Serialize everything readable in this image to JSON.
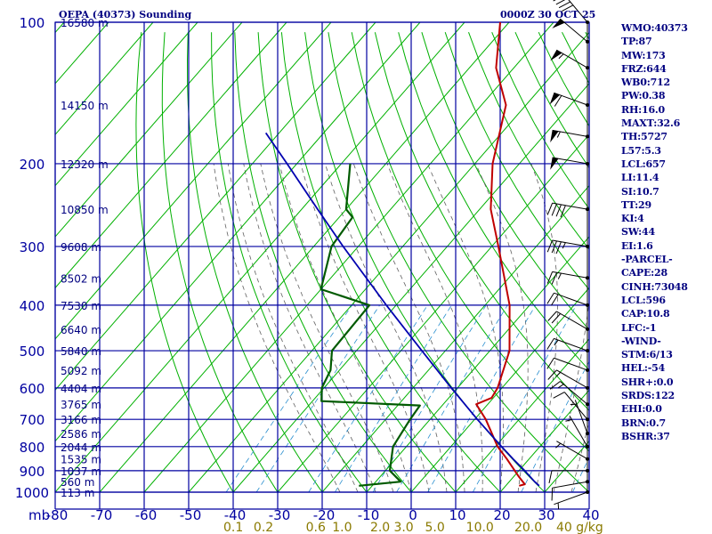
{
  "header": {
    "station": "OEPA (40373) Sounding",
    "datetime": "0000Z 30 OCT 25"
  },
  "colors": {
    "isobar": "#0000a0",
    "temperature": "#c00000",
    "dewpoint": "#005a00",
    "parcel": "#0000b0",
    "dry_adiabat": "#00b000",
    "moist_adiabat": "#606060",
    "mixing_ratio": "#2a8fcf",
    "mixing_label": "#8a7a00",
    "wind": "#000000"
  },
  "indices": [
    "WMO:40373",
    "TP:87",
    "MW:173",
    "FRZ:644",
    "WB0:712",
    "PW:0.38",
    "RH:16.0",
    "MAXT:32.6",
    "TH:5727",
    "L57:5.3",
    "LCL:657",
    "LI:11.4",
    "SI:10.7",
    "TT:29",
    "KI:4",
    "SW:44",
    "EI:1.6",
    "-PARCEL-",
    "CAPE:28",
    "CINH:73048",
    "LCL:596",
    "CAP:10.8",
    "LFC:-1",
    "-WIND-",
    "STM:6/13",
    "HEL:-54",
    "SHR+:0.0",
    "SRDS:122",
    "EHI:0.0",
    "BRN:0.7",
    "BSHR:37"
  ],
  "chart_data": {
    "type": "line",
    "title": "OEPA (40373) Sounding",
    "subtitle": "0000Z 30 OCT 25",
    "xlabel": "",
    "ylabel": "mb",
    "x_unit": "°C",
    "xlim": [
      -80,
      40
    ],
    "ylim": [
      1000,
      100
    ],
    "y_scale": "log",
    "x_ticks": [
      -80,
      -70,
      -60,
      -50,
      -40,
      -30,
      -20,
      -10,
      0,
      10,
      20,
      30,
      40
    ],
    "pressure_ticks": [
      100,
      200,
      300,
      400,
      500,
      600,
      700,
      800,
      900,
      1000
    ],
    "height_labels": [
      {
        "p": 100,
        "label": "16580 m"
      },
      {
        "p": 150,
        "label": "14150 m"
      },
      {
        "p": 200,
        "label": "12320 m"
      },
      {
        "p": 250,
        "label": "10850 m"
      },
      {
        "p": 300,
        "label": "9608 m"
      },
      {
        "p": 350,
        "label": "8502 m"
      },
      {
        "p": 400,
        "label": "7530 m"
      },
      {
        "p": 450,
        "label": "6640 m"
      },
      {
        "p": 500,
        "label": "5840 m"
      },
      {
        "p": 550,
        "label": "5092 m"
      },
      {
        "p": 600,
        "label": "4404 m"
      },
      {
        "p": 650,
        "label": "3765 m"
      },
      {
        "p": 700,
        "label": "3166 m"
      },
      {
        "p": 750,
        "label": "2586 m"
      },
      {
        "p": 800,
        "label": "2044 m"
      },
      {
        "p": 850,
        "label": "1535 m"
      },
      {
        "p": 900,
        "label": "1037 m"
      },
      {
        "p": 950,
        "label": "560 m"
      },
      {
        "p": 1000,
        "label": "113 m"
      }
    ],
    "mixing_ratio_labels": [
      "0.1",
      "0.2",
      "0.6",
      "1.0",
      "2.0",
      "3.0",
      "5.0",
      "10.0",
      "20.0",
      "40 g/kg"
    ],
    "mixing_ratio_values": [
      0.1,
      0.2,
      0.6,
      1,
      2,
      3,
      5,
      10,
      20,
      40
    ],
    "series": [
      {
        "kind": "temperature",
        "points": [
          [
            969,
            23
          ],
          [
            962,
            24
          ],
          [
            925,
            21
          ],
          [
            850,
            15
          ],
          [
            800,
            10.5
          ],
          [
            700,
            2.5
          ],
          [
            650,
            -2.6
          ],
          [
            630,
            -0.4
          ],
          [
            600,
            -1
          ],
          [
            500,
            -5.6
          ],
          [
            400,
            -14.5
          ],
          [
            300,
            -28.5
          ],
          [
            250,
            -37.5
          ],
          [
            200,
            -46
          ],
          [
            150,
            -54.5
          ],
          [
            125,
            -64
          ],
          [
            100,
            -72
          ]
        ]
      },
      {
        "kind": "dewpoint",
        "points": [
          [
            969,
            -13
          ],
          [
            950,
            -4.4
          ],
          [
            900,
            -9
          ],
          [
            800,
            -13
          ],
          [
            700,
            -14.5
          ],
          [
            654,
            -15
          ],
          [
            640,
            -38
          ],
          [
            600,
            -40.5
          ],
          [
            550,
            -42
          ],
          [
            500,
            -45.5
          ],
          [
            400,
            -46
          ],
          [
            370,
            -60
          ],
          [
            300,
            -66
          ],
          [
            260,
            -67
          ],
          [
            250,
            -70
          ],
          [
            200,
            -78
          ]
        ]
      },
      {
        "kind": "parcel",
        "points": [
          [
            969,
            27.5
          ],
          [
            950,
            25.7
          ],
          [
            900,
            21.3
          ],
          [
            850,
            16.4
          ],
          [
            800,
            11.4
          ],
          [
            700,
            0.6
          ],
          [
            600,
            -11.4
          ],
          [
            500,
            -25.3
          ],
          [
            400,
            -42.2
          ],
          [
            300,
            -63.4
          ],
          [
            250,
            -76.4
          ],
          [
            200,
            -92.2
          ],
          [
            172,
            -103
          ]
        ]
      }
    ],
    "wind_barbs": [
      {
        "p": 1000,
        "dir": 250,
        "spd": 5
      },
      {
        "p": 950,
        "dir": 260,
        "spd": 10
      },
      {
        "p": 900,
        "dir": 270,
        "spd": 10
      },
      {
        "p": 850,
        "dir": 300,
        "spd": 5
      },
      {
        "p": 800,
        "dir": 330,
        "spd": 5
      },
      {
        "p": 750,
        "dir": 340,
        "spd": 5
      },
      {
        "p": 700,
        "dir": 320,
        "spd": 10
      },
      {
        "p": 650,
        "dir": 310,
        "spd": 15
      },
      {
        "p": 600,
        "dir": 300,
        "spd": 15
      },
      {
        "p": 550,
        "dir": 290,
        "spd": 10
      },
      {
        "p": 500,
        "dir": 290,
        "spd": 15
      },
      {
        "p": 450,
        "dir": 300,
        "spd": 20
      },
      {
        "p": 400,
        "dir": 290,
        "spd": 20
      },
      {
        "p": 350,
        "dir": 280,
        "spd": 25
      },
      {
        "p": 300,
        "dir": 280,
        "spd": 35
      },
      {
        "p": 250,
        "dir": 280,
        "spd": 40
      },
      {
        "p": 200,
        "dir": 280,
        "spd": 50
      },
      {
        "p": 175,
        "dir": 280,
        "spd": 55
      },
      {
        "p": 150,
        "dir": 290,
        "spd": 60
      },
      {
        "p": 125,
        "dir": 300,
        "spd": 55
      },
      {
        "p": 110,
        "dir": 310,
        "spd": 50
      },
      {
        "p": 100,
        "dir": 320,
        "spd": 40
      }
    ],
    "grid": true
  }
}
